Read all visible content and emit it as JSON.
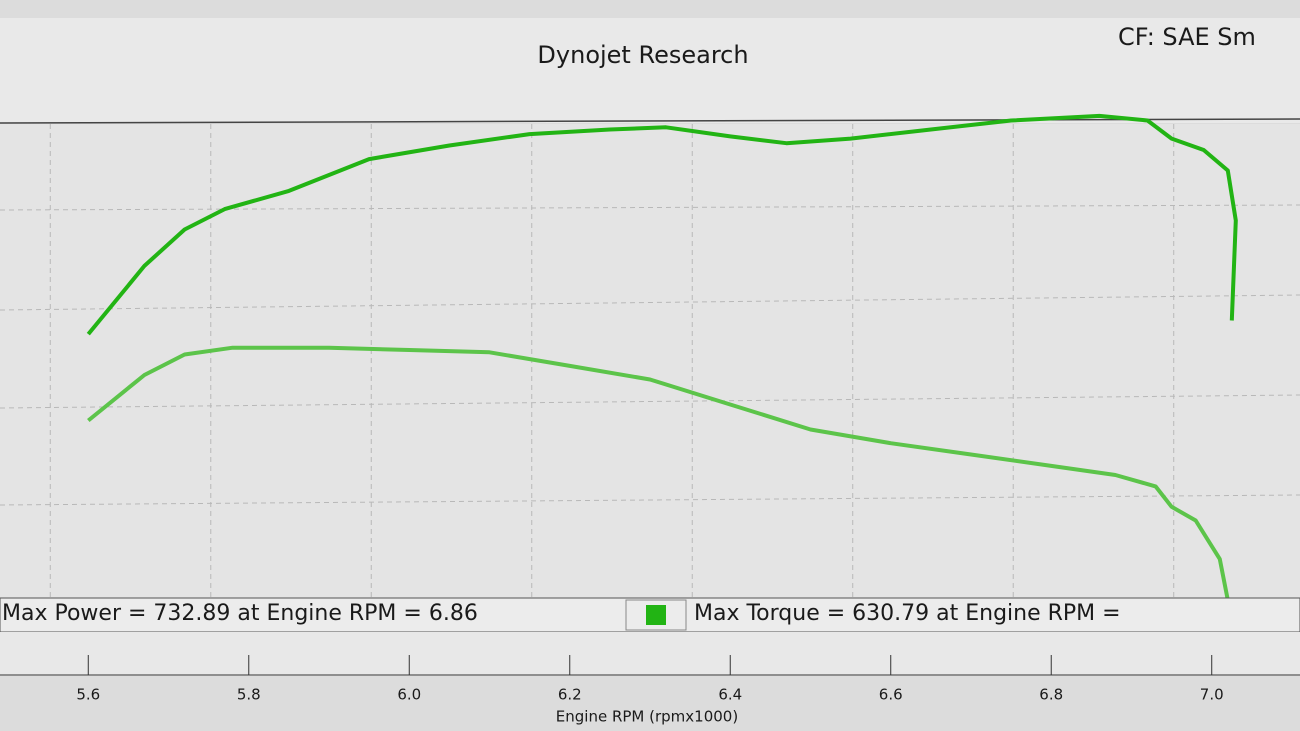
{
  "chart_data": {
    "type": "line",
    "title": "Dynojet Research",
    "correction": "CF: SAE Sm",
    "x_label": "Engine RPM (rpmx1000)",
    "legend_power": "Max Power = 732.89 at Engine RPM = 6.86",
    "legend_torque": "Max Torque = 630.79 at Engine RPM =",
    "xlim": [
      5.49,
      7.11
    ],
    "ylim": [
      520,
      740
    ],
    "xticks": [
      5.6,
      5.8,
      {
        "value": 6,
        "label": "6.0"
      },
      6.2,
      6.4,
      6.6,
      6.8,
      {
        "value": 7,
        "label": "7.0"
      }
    ],
    "grid": true,
    "series": [
      {
        "name": "Power",
        "color": "#22b414",
        "x": [
          5.6,
          5.67,
          5.72,
          5.77,
          5.85,
          5.95,
          6.05,
          6.15,
          6.25,
          6.32,
          6.4,
          6.47,
          6.55,
          6.65,
          6.75,
          6.86,
          6.92,
          6.95,
          6.99,
          7.02,
          7.03,
          7.025
        ],
        "values": [
          637,
          667,
          683,
          692,
          700,
          714,
          720,
          725,
          727,
          728,
          724,
          721,
          723,
          727,
          731,
          733,
          731,
          723,
          718,
          709,
          687,
          643
        ]
      },
      {
        "name": "Torque",
        "color": "#5cc44a",
        "x": [
          5.6,
          5.67,
          5.72,
          5.78,
          5.9,
          6.0,
          6.1,
          6.2,
          6.3,
          6.4,
          6.5,
          6.6,
          6.7,
          6.8,
          6.88,
          6.93,
          6.95,
          6.98,
          7.01,
          7.02
        ],
        "values": [
          599,
          619,
          628,
          631,
          631,
          630,
          629,
          623,
          617,
          606,
          595,
          589,
          584,
          579,
          575,
          570,
          561,
          555,
          538,
          520
        ]
      }
    ]
  }
}
